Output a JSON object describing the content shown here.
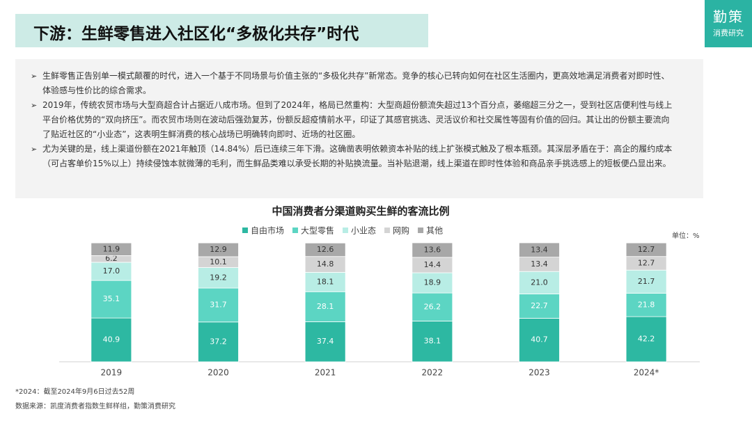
{
  "header": {
    "title": "下游：生鲜零售进入社区化“多极化共存”时代",
    "logo_main": "勤策",
    "logo_sub": "消费研究"
  },
  "bullets": [
    "生鲜零售正告别单一模式颠覆的时代，进入一个基于不同场景与价值主张的“多极化共存”新常态。竞争的核心已转向如何在社区生活圈内，更高效地满足消费者对即时性、体验感与性价比的综合需求。",
    "2019年，传统农贸市场与大型商超合计占据近八成市场。但到了2024年，格局已然重构：大型商超份额流失超过13个百分点，萎缩超三分之一，受到社区店便利性与线上平台价格优势的“双向挤压”。而农贸市场则在波动后强劲复苏，份额反超疫情前水平，印证了其感官挑选、灵活议价和社交属性等固有价值的回归。其让出的份额主要流向了贴近社区的“小业态”，这表明生鲜消费的核心战场已明确转向即时、近场的社区圈。",
    "尤为关键的是，线上渠道份额在2021年触顶（14.84%）后已连续三年下滑。这确凿表明依赖资本补贴的线上扩张模式触及了根本瓶颈。其深层矛盾在于：高企的履约成本（可占客单价15%以上）持续侵蚀本就微薄的毛利，而生鲜品类难以承受长期的补贴换流量。当补贴退潮，线上渠道在即时性体验和商品亲手挑选感上的短板便凸显出来。"
  ],
  "chart_data": {
    "type": "bar",
    "stacked": true,
    "title": "中国消费者分渠道购买生鲜的客流比例",
    "unit_label": "单位：%",
    "categories": [
      "2019",
      "2020",
      "2021",
      "2022",
      "2023",
      "2024*"
    ],
    "series": [
      {
        "name": "自由市场",
        "color": "#2db8a2",
        "values": [
          40.9,
          37.2,
          37.4,
          38.1,
          40.7,
          42.2
        ],
        "value_labels": [
          "40.9",
          "37.2",
          "37.4",
          "38.1",
          "40.7",
          "42.2"
        ]
      },
      {
        "name": "大型零售",
        "color": "#5cd5c3",
        "values": [
          35.1,
          31.7,
          28.1,
          26.2,
          22.7,
          21.8
        ],
        "value_labels": [
          "35.1",
          "31.7",
          "28.1",
          "26.2",
          "22.7",
          "21.8"
        ]
      },
      {
        "name": "小业态",
        "color": "#b8ede5",
        "values": [
          17.0,
          19.2,
          18.1,
          18.9,
          21.0,
          21.7
        ],
        "value_labels": [
          "17.0",
          "19.2",
          "18.1",
          "18.9",
          "21.0",
          "21.7"
        ]
      },
      {
        "name": "网购",
        "color": "#d4d4d4",
        "values": [
          6.2,
          10.1,
          14.8,
          14.4,
          13.4,
          12.7
        ],
        "value_labels": [
          "6.2",
          "10.1",
          "14.8",
          "14.4",
          "13.4",
          "12.7"
        ]
      },
      {
        "name": "其他",
        "color": "#a8a8a8",
        "values": [
          11.9,
          12.9,
          12.6,
          13.6,
          13.4,
          12.7
        ],
        "value_labels": [
          "11.9",
          "12.9",
          "12.6",
          "13.6",
          "13.4",
          "12.7"
        ]
      }
    ]
  },
  "footnotes": [
    "*2024：截至2024年9月6日过去52周",
    "数据来源：凯度消费者指数生鲜样组，勤策消费研究"
  ]
}
